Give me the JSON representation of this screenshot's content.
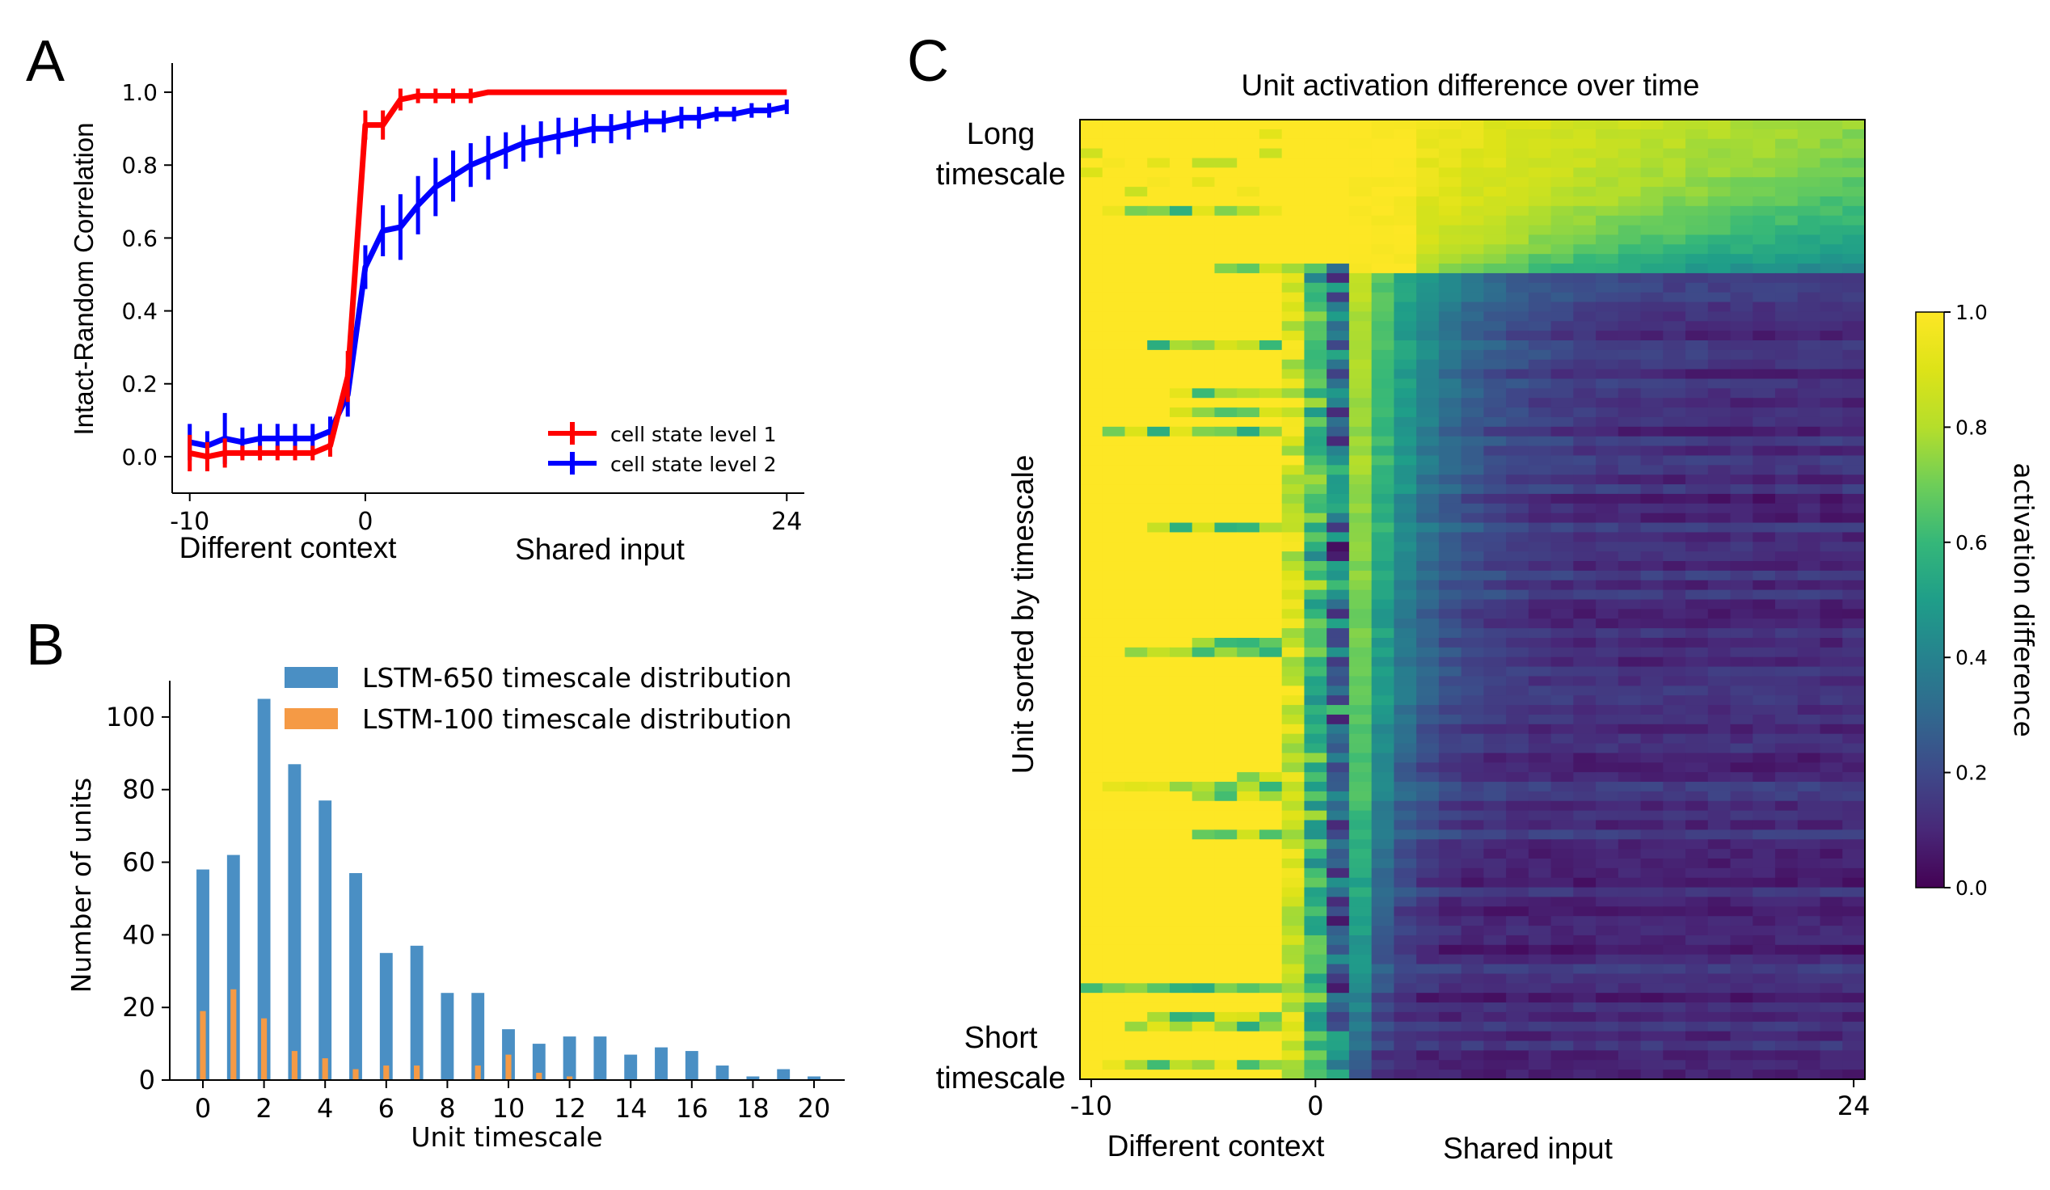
{
  "figure": {
    "panel_labels": [
      "A",
      "B",
      "C"
    ]
  },
  "chart_data": [
    {
      "type": "line",
      "panel": "A",
      "title": "",
      "xlabel": "",
      "ylabel": "Intact-Random Correlation",
      "xlim": [
        -11,
        25
      ],
      "ylim": [
        -0.1,
        1.08
      ],
      "x_ticks": [
        -10,
        0,
        24
      ],
      "x_tick_labels": [
        "-10",
        "0",
        "24"
      ],
      "y_ticks": [
        0.0,
        0.2,
        0.4,
        0.6,
        0.8,
        1.0
      ],
      "y_tick_labels": [
        "0.0",
        "0.2",
        "0.4",
        "0.6",
        "0.8",
        "1.0"
      ],
      "x_annotations": [
        "Different context",
        "Shared input"
      ],
      "grid": false,
      "legend_position": "bottom-right",
      "x": [
        -10,
        -9,
        -8,
        -7,
        -6,
        -5,
        -4,
        -3,
        -2,
        -1,
        0,
        1,
        2,
        3,
        4,
        5,
        6,
        7,
        8,
        9,
        10,
        11,
        12,
        13,
        14,
        15,
        16,
        17,
        18,
        19,
        20,
        21,
        22,
        23,
        24
      ],
      "series": [
        {
          "name": "cell state level 1",
          "color": "#ff0000",
          "values": [
            0.01,
            0.0,
            0.01,
            0.01,
            0.01,
            0.01,
            0.01,
            0.01,
            0.03,
            0.22,
            0.91,
            0.91,
            0.98,
            0.99,
            0.99,
            0.99,
            0.99,
            1.0,
            1.0,
            1.0,
            1.0,
            1.0,
            1.0,
            1.0,
            1.0,
            1.0,
            1.0,
            1.0,
            1.0,
            1.0,
            1.0,
            1.0,
            1.0,
            1.0,
            1.0
          ],
          "errors": [
            0.05,
            0.04,
            0.04,
            0.02,
            0.02,
            0.02,
            0.02,
            0.02,
            0.03,
            0.07,
            0.04,
            0.04,
            0.03,
            0.02,
            0.02,
            0.02,
            0.02,
            0.0,
            0.0,
            0.0,
            0.0,
            0.0,
            0.0,
            0.0,
            0.0,
            0.0,
            0.0,
            0.0,
            0.0,
            0.0,
            0.0,
            0.0,
            0.0,
            0.0,
            0.0
          ]
        },
        {
          "name": "cell state level 2",
          "color": "#0000ff",
          "values": [
            0.04,
            0.03,
            0.05,
            0.04,
            0.05,
            0.05,
            0.05,
            0.05,
            0.07,
            0.17,
            0.52,
            0.62,
            0.63,
            0.69,
            0.74,
            0.77,
            0.8,
            0.82,
            0.84,
            0.86,
            0.87,
            0.88,
            0.89,
            0.9,
            0.9,
            0.91,
            0.92,
            0.92,
            0.93,
            0.93,
            0.94,
            0.94,
            0.95,
            0.95,
            0.96
          ],
          "errors": [
            0.05,
            0.04,
            0.07,
            0.04,
            0.04,
            0.04,
            0.04,
            0.04,
            0.04,
            0.06,
            0.06,
            0.07,
            0.09,
            0.08,
            0.08,
            0.07,
            0.06,
            0.06,
            0.05,
            0.05,
            0.05,
            0.05,
            0.04,
            0.04,
            0.04,
            0.04,
            0.03,
            0.03,
            0.03,
            0.03,
            0.02,
            0.02,
            0.02,
            0.02,
            0.02
          ]
        }
      ]
    },
    {
      "type": "bar",
      "panel": "B",
      "title": "",
      "xlabel": "Unit timescale",
      "ylabel": "Number of units",
      "xlim": [
        -1,
        21
      ],
      "ylim": [
        0,
        110
      ],
      "x_ticks": [
        0,
        2,
        4,
        6,
        8,
        10,
        12,
        14,
        16,
        18,
        20
      ],
      "x_tick_labels": [
        "0",
        "2",
        "4",
        "6",
        "8",
        "10",
        "12",
        "14",
        "16",
        "18",
        "20"
      ],
      "y_ticks": [
        0,
        20,
        40,
        60,
        80,
        100
      ],
      "y_tick_labels": [
        "0",
        "20",
        "40",
        "60",
        "80",
        "100"
      ],
      "grid": false,
      "legend_position": "top-right",
      "series": [
        {
          "name": "LSTM-650 timescale distribution",
          "color": "#4a8fc4",
          "x": [
            0,
            1,
            2,
            3,
            4,
            5,
            6,
            7,
            8,
            9,
            10,
            11,
            12,
            13,
            14,
            15,
            16,
            17,
            18,
            19,
            20
          ],
          "values": [
            58,
            62,
            105,
            87,
            77,
            57,
            35,
            37,
            24,
            24,
            14,
            10,
            12,
            12,
            7,
            9,
            8,
            4,
            1,
            3,
            1
          ]
        },
        {
          "name": "LSTM-100 timescale distribution",
          "color": "#f59a45",
          "x": [
            0,
            1,
            2,
            3,
            4,
            5,
            6,
            7,
            8,
            9,
            10,
            11,
            12,
            13,
            14,
            15,
            16,
            17,
            18,
            19,
            20
          ],
          "values": [
            19,
            25,
            17,
            8,
            6,
            3,
            4,
            4,
            0,
            4,
            7,
            2,
            1,
            0,
            0,
            0,
            0,
            0,
            0,
            0,
            0
          ]
        }
      ]
    },
    {
      "type": "heatmap",
      "panel": "C",
      "title": "Unit activation difference over time",
      "xlabel": "",
      "ylabel": "Unit sorted by timescale",
      "x_ticks": [
        -10,
        0,
        24
      ],
      "x_tick_labels": [
        "-10",
        "0",
        "24"
      ],
      "x_annotations": [
        "Different context",
        "Shared input"
      ],
      "y_annotations": [
        "Long\ntimescale",
        "Short\ntimescale"
      ],
      "xlim": [
        -10.5,
        24.5
      ],
      "n_columns": 35,
      "n_rows": 100,
      "colormap": "viridis",
      "colorbar": {
        "label": "activation difference",
        "range": [
          0.0,
          1.0
        ],
        "ticks": [
          0.0,
          0.2,
          0.4,
          0.6,
          0.8,
          1.0
        ],
        "tick_labels": [
          "0.0",
          "0.2",
          "0.4",
          "0.6",
          "0.8",
          "1.0"
        ]
      },
      "value_pattern": {
        "before_0": "mostly 1.0 (yellow) with occasional lower rows",
        "at_0": "drops for short-timescale units",
        "after_0_long_timescale_units": "stays high, decays slowly toward ~0.4-0.6 by 24",
        "after_0_short_timescale_units": "decays quickly toward ~0.05-0.15"
      }
    }
  ]
}
